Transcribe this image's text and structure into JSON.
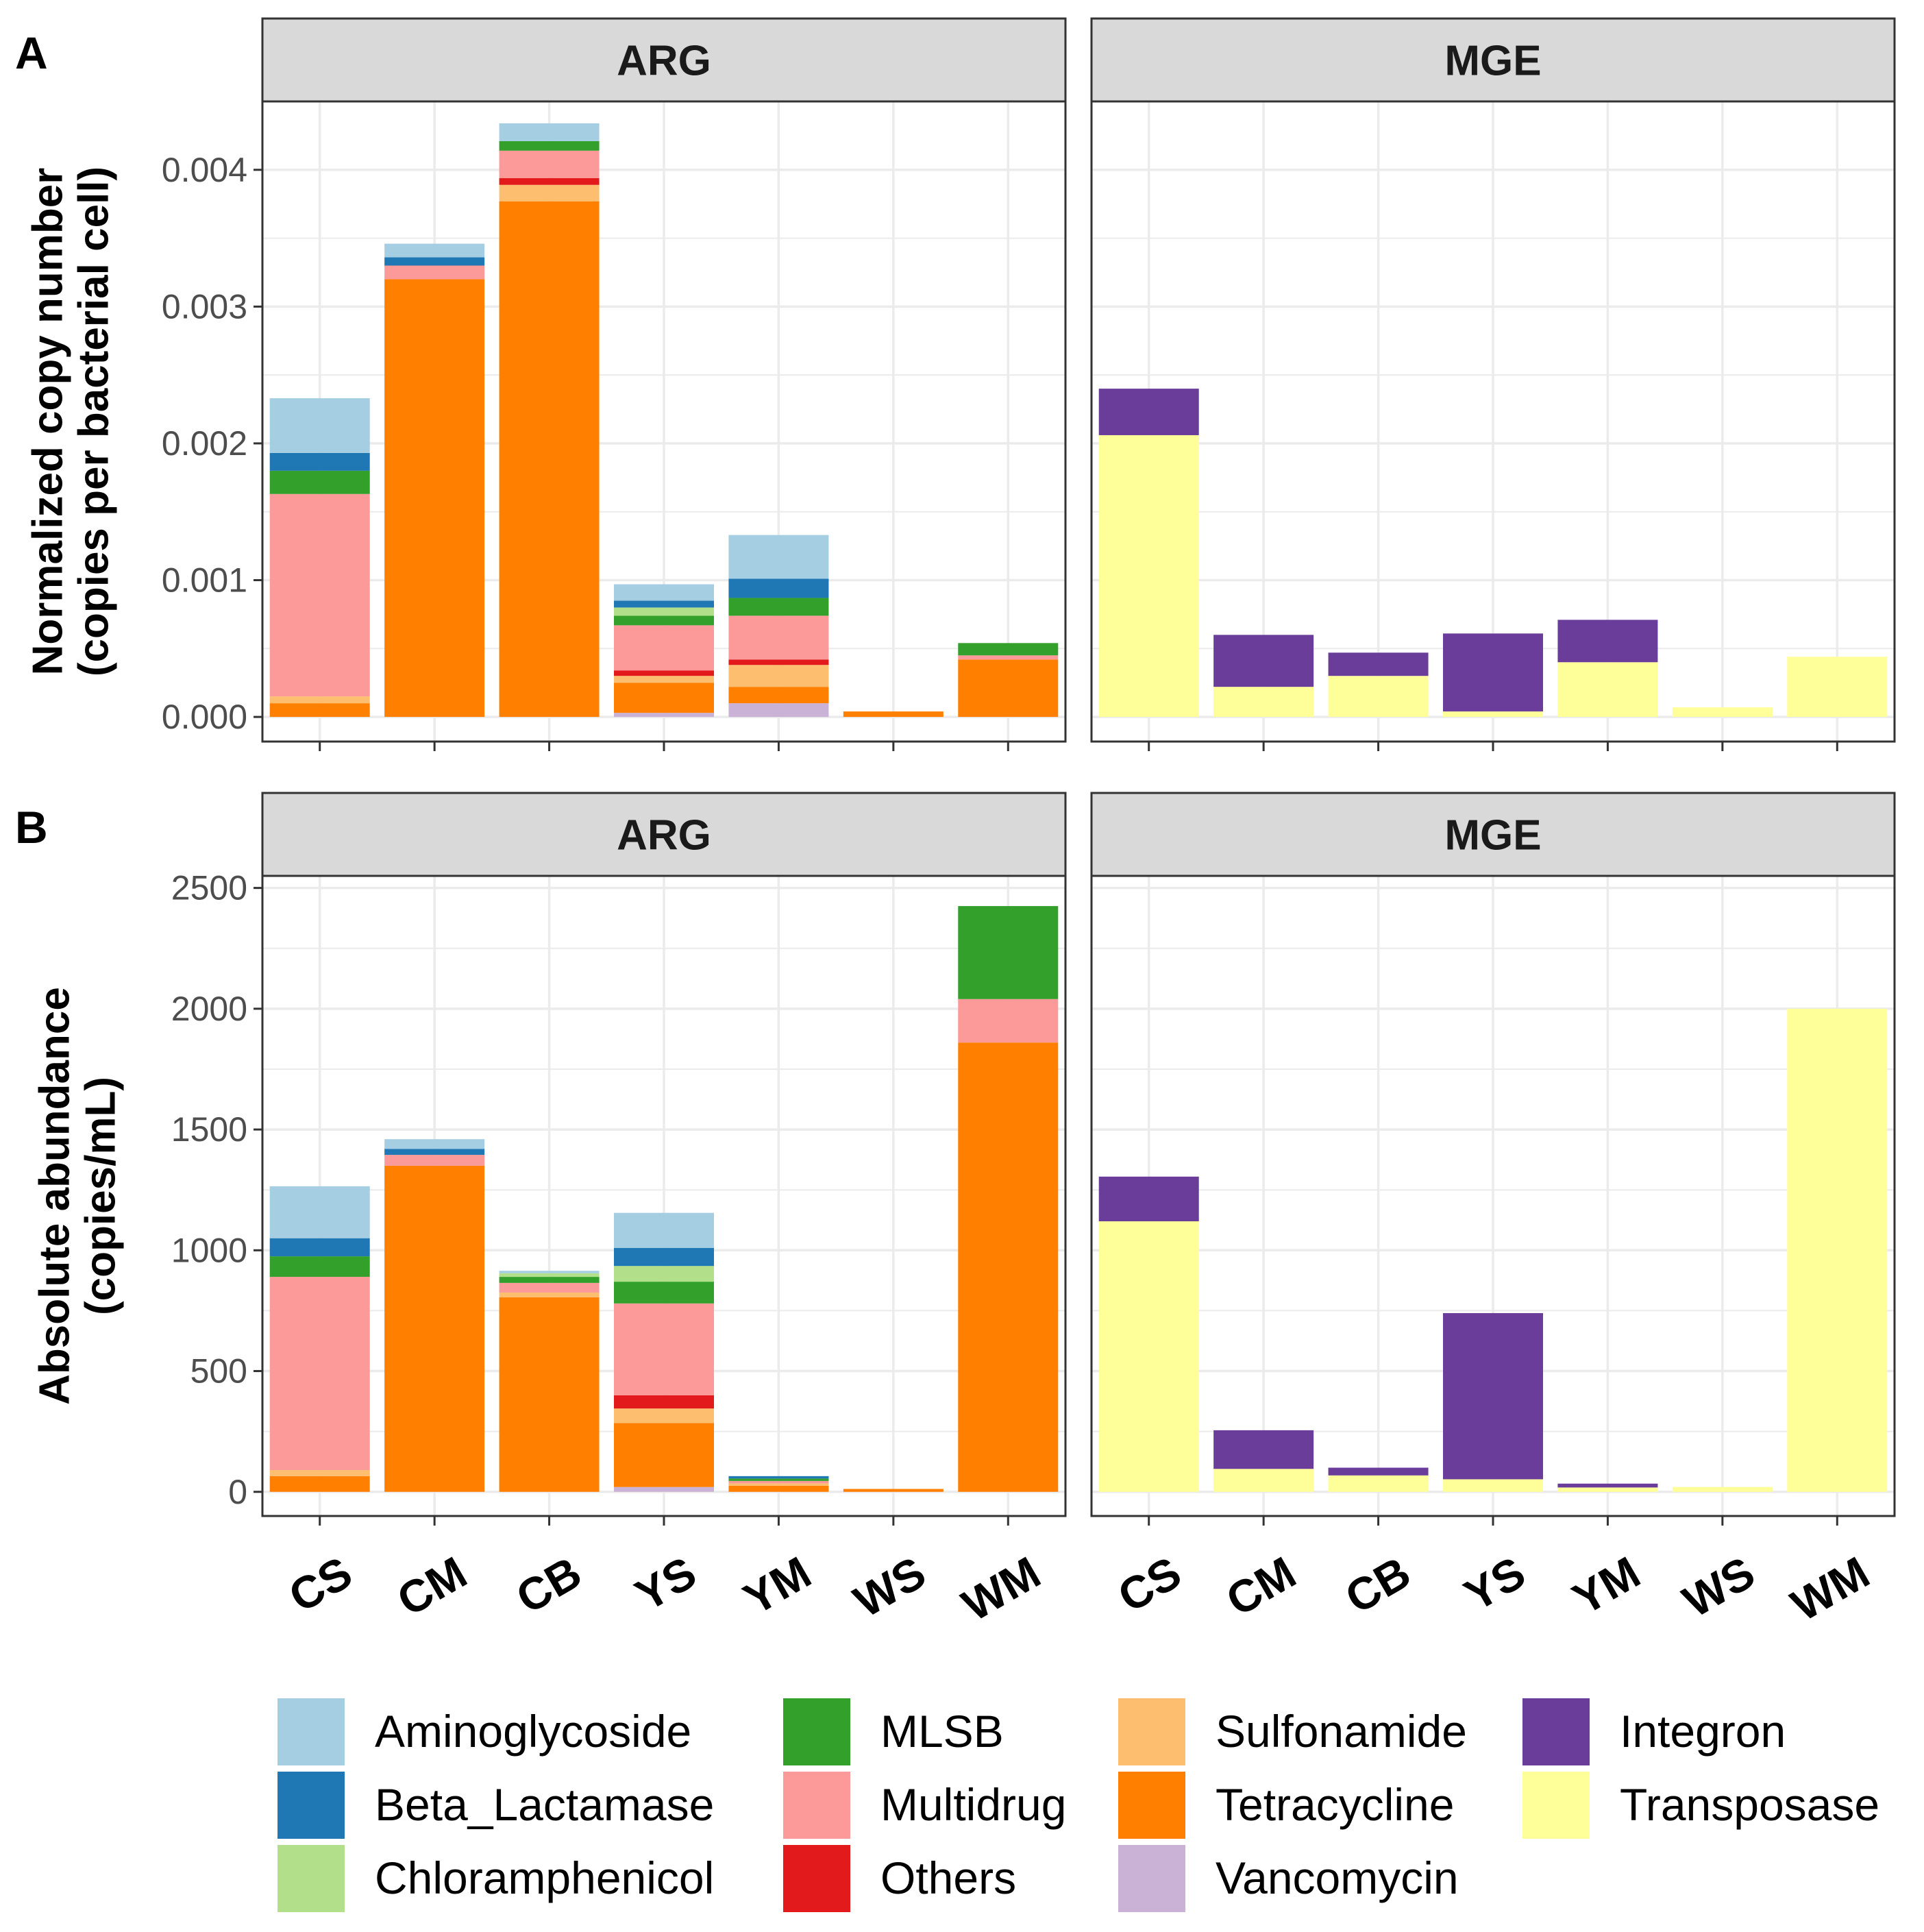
{
  "chart_data": {
    "type": "bar",
    "stacked": true,
    "categories": [
      "CS",
      "CM",
      "CB",
      "YS",
      "YM",
      "WS",
      "WM"
    ],
    "colors": {
      "Aminoglycoside": "#a6cee3",
      "Beta_Lactamase": "#1f78b4",
      "Chloramphenicol": "#b2df8a",
      "MLSB": "#33a02c",
      "Multidrug": "#fb9a99",
      "Others": "#e31a1c",
      "Sulfonamide": "#fdbf6f",
      "Tetracycline": "#ff7f00",
      "Vancomycin": "#cab2d6",
      "Integron": "#6a3d9a",
      "Transposase": "#ffff99"
    },
    "panel_colors": {
      "strip_fill": "#d9d9d9",
      "grid": "#ebebeb",
      "border": "#333333"
    },
    "legend": {
      "position": "bottom",
      "entries": [
        "Aminoglycoside",
        "Beta_Lactamase",
        "Chloramphenicol",
        "MLSB",
        "Multidrug",
        "Others",
        "Sulfonamide",
        "Tetracycline",
        "Vancomycin",
        "Integron",
        "Transposase"
      ]
    },
    "rows": [
      {
        "label": "A",
        "ylabel": [
          "Normalized copy number",
          "(copies per bacterial cell)"
        ],
        "ylim": [
          -0.00018,
          0.0045
        ],
        "yticks": [
          0,
          0.001,
          0.002,
          0.003,
          0.004
        ],
        "ytick_labels": [
          "0.000",
          "0.001",
          "0.002",
          "0.003",
          "0.004"
        ],
        "panels": [
          {
            "facet": "ARG",
            "stacks": [
              [
                [
                  "Tetracycline",
                  0.0001
                ],
                [
                  "Sulfonamide",
                  5e-05
                ],
                [
                  "Multidrug",
                  0.00148
                ],
                [
                  "MLSB",
                  0.00017
                ],
                [
                  "Beta_Lactamase",
                  0.00013
                ],
                [
                  "Aminoglycoside",
                  0.0004
                ]
              ],
              [
                [
                  "Tetracycline",
                  0.0032
                ],
                [
                  "Multidrug",
                  0.0001
                ],
                [
                  "Beta_Lactamase",
                  6e-05
                ],
                [
                  "Aminoglycoside",
                  0.0001
                ]
              ],
              [
                [
                  "Tetracycline",
                  0.00377
                ],
                [
                  "Sulfonamide",
                  0.00012
                ],
                [
                  "Others",
                  5e-05
                ],
                [
                  "Multidrug",
                  0.0002
                ],
                [
                  "MLSB",
                  7e-05
                ],
                [
                  "Aminoglycoside",
                  0.00013
                ]
              ],
              [
                [
                  "Vancomycin",
                  3e-05
                ],
                [
                  "Tetracycline",
                  0.00022
                ],
                [
                  "Sulfonamide",
                  5e-05
                ],
                [
                  "Others",
                  4e-05
                ],
                [
                  "Multidrug",
                  0.00033
                ],
                [
                  "MLSB",
                  7e-05
                ],
                [
                  "Chloramphenicol",
                  6e-05
                ],
                [
                  "Beta_Lactamase",
                  5e-05
                ],
                [
                  "Aminoglycoside",
                  0.00012
                ]
              ],
              [
                [
                  "Vancomycin",
                  0.0001
                ],
                [
                  "Tetracycline",
                  0.00012
                ],
                [
                  "Sulfonamide",
                  0.00016
                ],
                [
                  "Others",
                  4e-05
                ],
                [
                  "Multidrug",
                  0.00032
                ],
                [
                  "MLSB",
                  0.00013
                ],
                [
                  "Beta_Lactamase",
                  0.00014
                ],
                [
                  "Aminoglycoside",
                  0.00032
                ]
              ],
              [
                [
                  "Tetracycline",
                  4e-05
                ]
              ],
              [
                [
                  "Tetracycline",
                  0.00042
                ],
                [
                  "Multidrug",
                  3e-05
                ],
                [
                  "MLSB",
                  9e-05
                ]
              ]
            ]
          },
          {
            "facet": "MGE",
            "stacks": [
              [
                [
                  "Transposase",
                  0.00206
                ],
                [
                  "Integron",
                  0.00034
                ]
              ],
              [
                [
                  "Transposase",
                  0.00022
                ],
                [
                  "Integron",
                  0.00038
                ]
              ],
              [
                [
                  "Transposase",
                  0.0003
                ],
                [
                  "Integron",
                  0.00017
                ]
              ],
              [
                [
                  "Transposase",
                  4e-05
                ],
                [
                  "Integron",
                  0.00057
                ]
              ],
              [
                [
                  "Transposase",
                  0.0004
                ],
                [
                  "Integron",
                  0.00031
                ]
              ],
              [
                [
                  "Transposase",
                  7e-05
                ]
              ],
              [
                [
                  "Transposase",
                  0.00044
                ]
              ]
            ]
          }
        ]
      },
      {
        "label": "B",
        "ylabel": [
          "Absolute abundance",
          "(copies/mL)"
        ],
        "ylim": [
          -100,
          2550
        ],
        "yticks": [
          0,
          500,
          1000,
          1500,
          2000,
          2500
        ],
        "ytick_labels": [
          "0",
          "500",
          "1000",
          "1500",
          "2000",
          "2500"
        ],
        "panels": [
          {
            "facet": "ARG",
            "stacks": [
              [
                [
                  "Tetracycline",
                  65
                ],
                [
                  "Sulfonamide",
                  25
                ],
                [
                  "Multidrug",
                  800
                ],
                [
                  "MLSB",
                  85
                ],
                [
                  "Beta_Lactamase",
                  75
                ],
                [
                  "Aminoglycoside",
                  215
                ]
              ],
              [
                [
                  "Tetracycline",
                  1350
                ],
                [
                  "Multidrug",
                  45
                ],
                [
                  "Beta_Lactamase",
                  25
                ],
                [
                  "Aminoglycoside",
                  40
                ]
              ],
              [
                [
                  "Tetracycline",
                  805
                ],
                [
                  "Sulfonamide",
                  20
                ],
                [
                  "Multidrug",
                  40
                ],
                [
                  "MLSB",
                  25
                ],
                [
                  "Chloramphenicol",
                  15
                ],
                [
                  "Aminoglycoside",
                  10
                ]
              ],
              [
                [
                  "Vancomycin",
                  20
                ],
                [
                  "Tetracycline",
                  265
                ],
                [
                  "Sulfonamide",
                  60
                ],
                [
                  "Others",
                  55
                ],
                [
                  "Multidrug",
                  380
                ],
                [
                  "MLSB",
                  90
                ],
                [
                  "Chloramphenicol",
                  65
                ],
                [
                  "Beta_Lactamase",
                  75
                ],
                [
                  "Aminoglycoside",
                  145
                ]
              ],
              [
                [
                  "Tetracycline",
                  25
                ],
                [
                  "Sulfonamide",
                  10
                ],
                [
                  "Multidrug",
                  10
                ],
                [
                  "MLSB",
                  10
                ],
                [
                  "Beta_Lactamase",
                  10
                ]
              ],
              [
                [
                  "Tetracycline",
                  12
                ]
              ],
              [
                [
                  "Tetracycline",
                  1860
                ],
                [
                  "Multidrug",
                  180
                ],
                [
                  "MLSB",
                  385
                ]
              ]
            ]
          },
          {
            "facet": "MGE",
            "stacks": [
              [
                [
                  "Transposase",
                  1120
                ],
                [
                  "Integron",
                  185
                ]
              ],
              [
                [
                  "Transposase",
                  95
                ],
                [
                  "Integron",
                  160
                ]
              ],
              [
                [
                  "Transposase",
                  68
                ],
                [
                  "Integron",
                  32
                ]
              ],
              [
                [
                  "Transposase",
                  52
                ],
                [
                  "Integron",
                  688
                ]
              ],
              [
                [
                  "Transposase",
                  18
                ],
                [
                  "Integron",
                  16
                ]
              ],
              [
                [
                  "Transposase",
                  20
                ]
              ],
              [
                [
                  "Transposase",
                  2000
                ]
              ]
            ]
          }
        ]
      }
    ]
  }
}
